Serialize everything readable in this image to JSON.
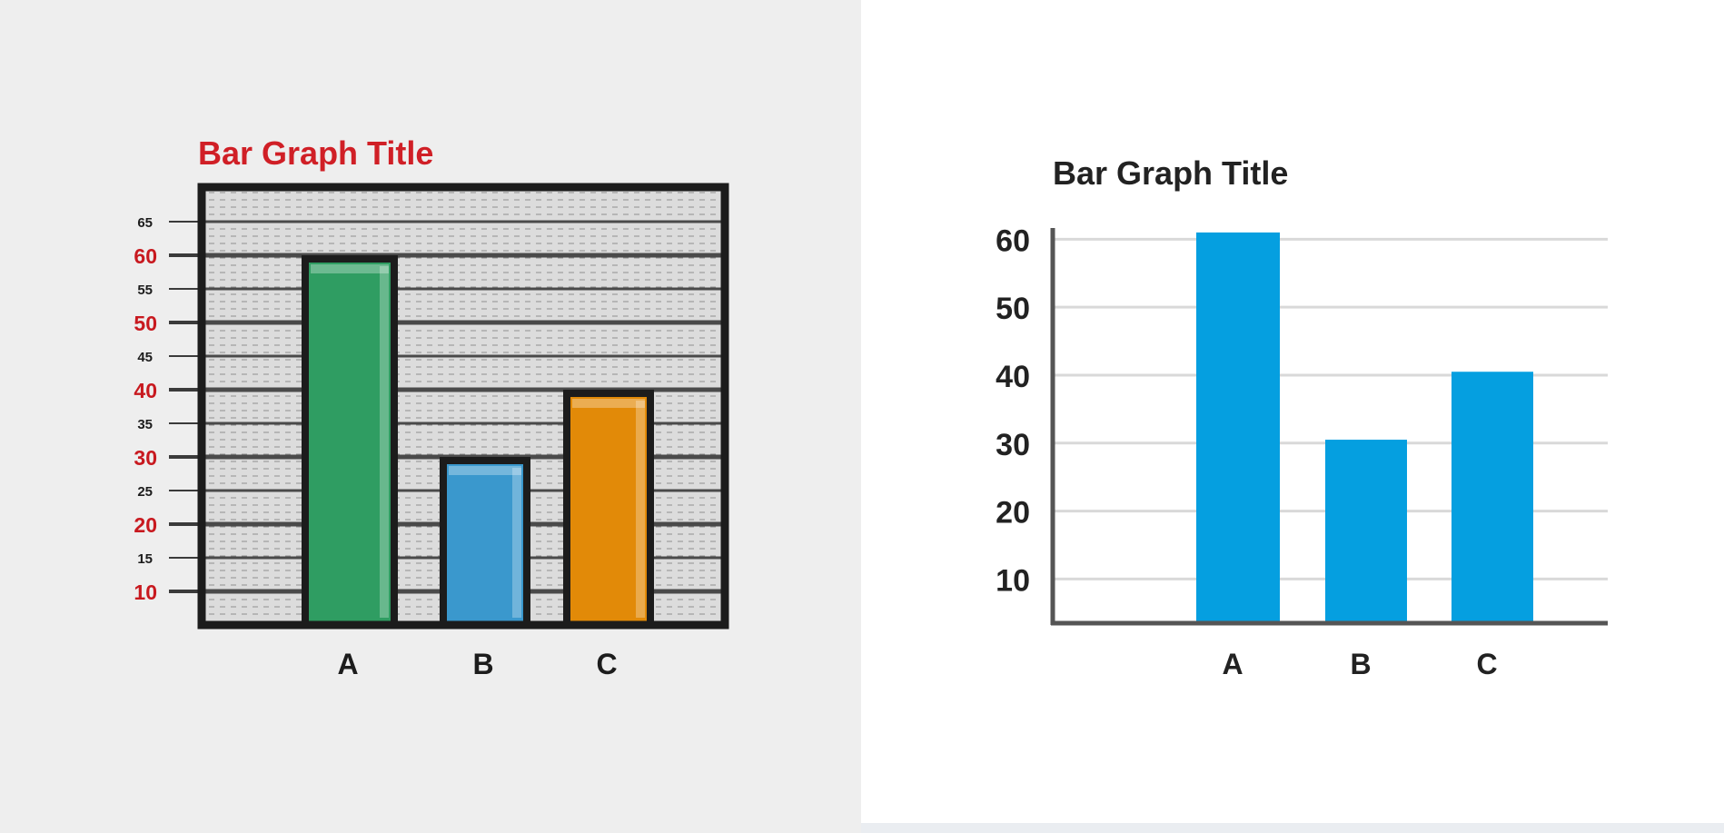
{
  "chart_data": [
    {
      "type": "bar",
      "style": "skeuomorphic",
      "title": "Bar Graph Title",
      "categories": [
        "A",
        "B",
        "C"
      ],
      "values": [
        60,
        30,
        40
      ],
      "ylim": [
        5,
        67
      ],
      "yticks": [
        10,
        15,
        20,
        25,
        30,
        35,
        40,
        45,
        50,
        55,
        60,
        65
      ],
      "yticks_major": [
        10,
        20,
        30,
        40,
        50,
        60
      ],
      "grid": true,
      "colors": {
        "title": "#d01f26",
        "major_ticks": "#c8191f",
        "bars": [
          "#2f9d62",
          "#3a98cd",
          "#e28a08"
        ],
        "frame": "#1c1c1c"
      }
    },
    {
      "type": "bar",
      "style": "flat",
      "title": "Bar Graph Title",
      "categories": [
        "A",
        "B",
        "C"
      ],
      "values": [
        61,
        30.5,
        40.5
      ],
      "ylim": [
        3.5,
        63
      ],
      "yticks": [
        10,
        20,
        30,
        40,
        50,
        60
      ],
      "grid": true,
      "colors": {
        "title": "#222222",
        "bars": "#059fe0",
        "axis": "#555555",
        "grid": "#d9d9d9"
      }
    }
  ]
}
